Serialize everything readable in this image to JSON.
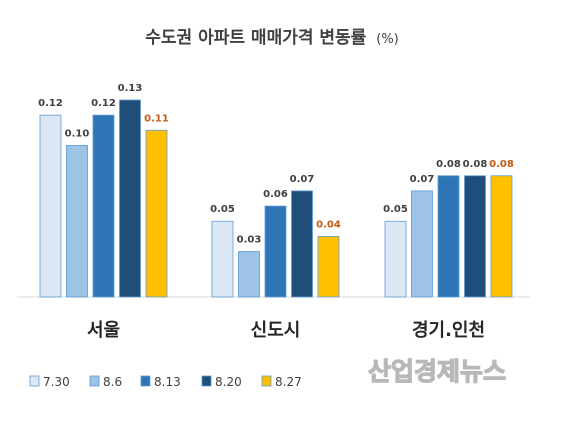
{
  "chart_data": {
    "type": "bar",
    "title": "수도권 아파트 매매가격 변동률",
    "title_unit": "(%)",
    "categories": [
      "서울",
      "신도시",
      "경기.인천"
    ],
    "series": [
      {
        "name": "7.30",
        "values": [
          0.12,
          0.05,
          0.05
        ],
        "color": "#dce9f5",
        "label_color": "#404040"
      },
      {
        "name": "8.6",
        "values": [
          0.1,
          0.03,
          0.07
        ],
        "color": "#9dc3e6",
        "label_color": "#404040"
      },
      {
        "name": "8.13",
        "values": [
          0.12,
          0.06,
          0.08
        ],
        "color": "#2e75b6",
        "label_color": "#404040"
      },
      {
        "name": "8.20",
        "values": [
          0.13,
          0.07,
          0.08
        ],
        "color": "#1f4e79",
        "label_color": "#404040"
      },
      {
        "name": "8.27",
        "values": [
          0.11,
          0.04,
          0.08
        ],
        "color": "#ffc000",
        "label_color": "#c55a11"
      }
    ],
    "value_labels": [
      [
        "0.12",
        "0.05",
        "0.05"
      ],
      [
        "0.10",
        "0.03",
        "0.07"
      ],
      [
        "0.12",
        "0.06",
        "0.08"
      ],
      [
        "0.13",
        "0.07",
        "0.08"
      ],
      [
        "0.11",
        "0.04",
        "0.08"
      ]
    ],
    "ylim": [
      0,
      0.13
    ],
    "grid": false,
    "legend_position": "bottom-left"
  },
  "watermark": "산업경제뉴스"
}
